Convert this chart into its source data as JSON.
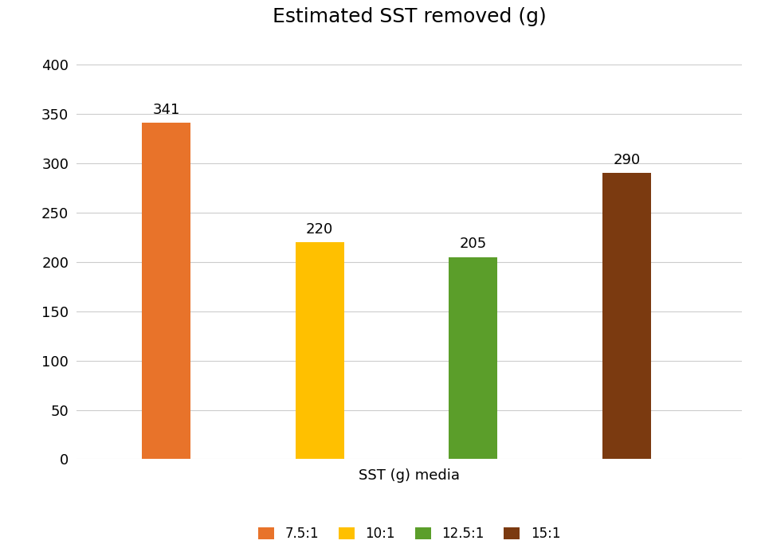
{
  "title": "Estimated SST removed (g)",
  "xlabel": "SST (g) media",
  "ylabel": "",
  "categories": [
    "7.5:1",
    "10:1",
    "12.5:1",
    "15:1"
  ],
  "values": [
    341,
    220,
    205,
    290
  ],
  "bar_colors": [
    "#E8732A",
    "#FFC000",
    "#5B9E2A",
    "#7B3A10"
  ],
  "label_fontsize": 13,
  "title_fontsize": 18,
  "xlabel_fontsize": 13,
  "tick_fontsize": 13,
  "legend_fontsize": 12,
  "ylim": [
    0,
    420
  ],
  "yticks": [
    0,
    50,
    100,
    150,
    200,
    250,
    300,
    350,
    400
  ],
  "background_color": "#ffffff",
  "grid_color": "#cccccc",
  "bar_width": 0.38,
  "bar_positions": [
    1.0,
    2.2,
    3.4,
    4.6
  ]
}
